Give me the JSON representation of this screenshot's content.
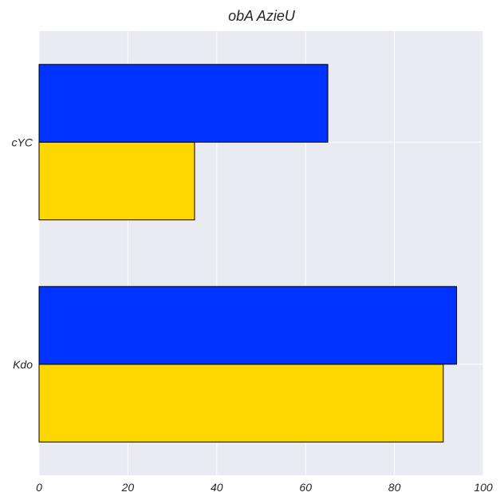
{
  "chart_data": {
    "type": "bar",
    "orientation": "horizontal",
    "title": "obA AzieU",
    "xlabel": "",
    "ylabel": "",
    "categories": [
      "Kdo",
      "cYC"
    ],
    "series": [
      {
        "values": [
          91,
          35
        ],
        "color": "#FFD700"
      },
      {
        "values": [
          94,
          65
        ],
        "color": "#0033FF"
      }
    ],
    "xlim": [
      0,
      100
    ],
    "xticks": [
      "0",
      "20",
      "40",
      "60",
      "80",
      "100"
    ],
    "grid": true,
    "plot_background": "#EAEAF2",
    "grid_color": "#FFFFFF",
    "edge_color": "#000000"
  }
}
